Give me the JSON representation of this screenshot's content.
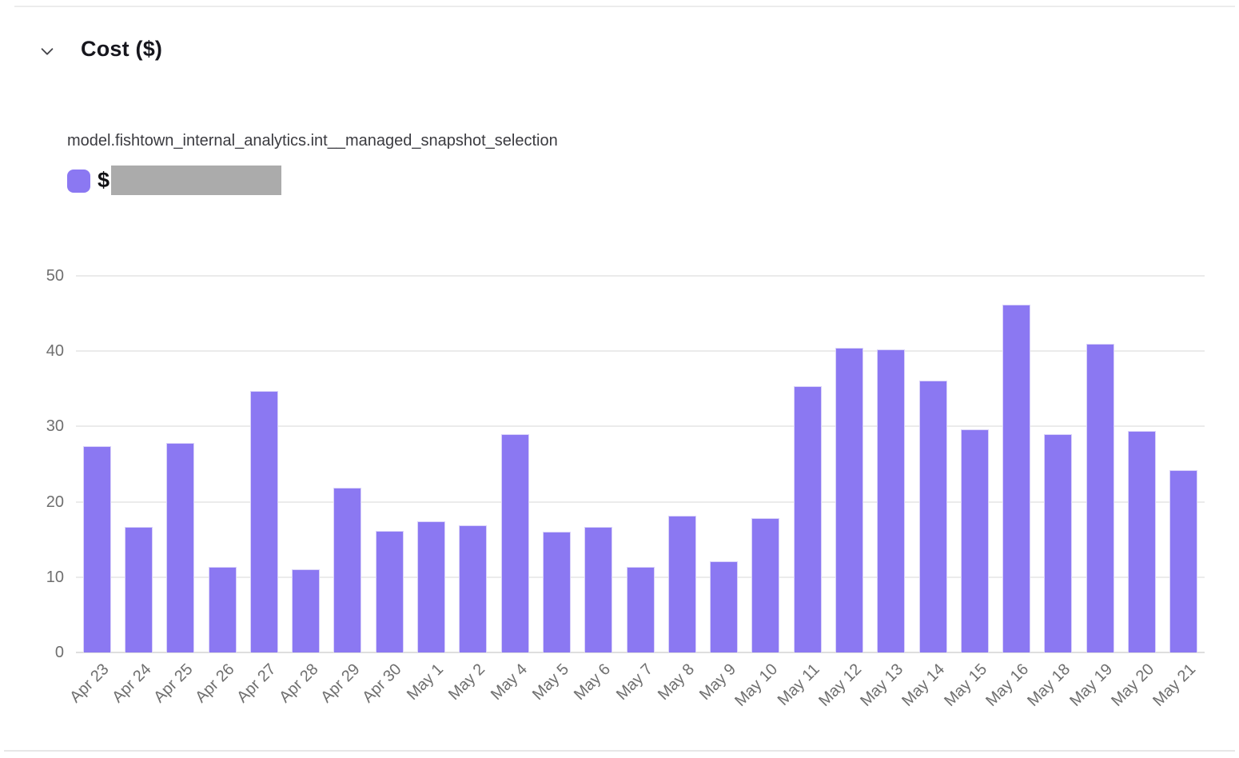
{
  "header": {
    "title": "Cost ($)"
  },
  "legend": {
    "series_label": "model.fishtown_internal_analytics.int__managed_snapshot_selection",
    "value_prefix": "$",
    "swatch_color": "#8b78f2",
    "redacted_box_color": "#ababab"
  },
  "chart_data": {
    "type": "bar",
    "title": "Cost ($)",
    "series_name": "model.fishtown_internal_analytics.int__managed_snapshot_selection",
    "categories": [
      "Apr 23",
      "Apr 24",
      "Apr 25",
      "Apr 26",
      "Apr 27",
      "Apr 28",
      "Apr 29",
      "Apr 30",
      "May 1",
      "May 2",
      "May 4",
      "May 5",
      "May 6",
      "May 7",
      "May 8",
      "May 9",
      "May 10",
      "May 11",
      "May 12",
      "May 13",
      "May 14",
      "May 15",
      "May 16",
      "May 18",
      "May 19",
      "May 20",
      "May 21"
    ],
    "values": [
      27.4,
      16.7,
      27.8,
      11.4,
      34.7,
      11.0,
      21.9,
      16.1,
      17.4,
      16.9,
      29.0,
      16.0,
      16.7,
      11.4,
      18.1,
      12.1,
      17.8,
      35.3,
      40.4,
      40.2,
      36.1,
      29.6,
      46.2,
      29.0,
      41.0,
      29.4,
      24.2
    ],
    "xlabel": "",
    "ylabel": "",
    "ylim": [
      0,
      50
    ],
    "yticks": [
      0,
      10,
      20,
      30,
      40,
      50
    ],
    "bar_color": "#8b78f2",
    "grid": true,
    "x_tick_rotation": -45,
    "legend_position": "top-left"
  }
}
